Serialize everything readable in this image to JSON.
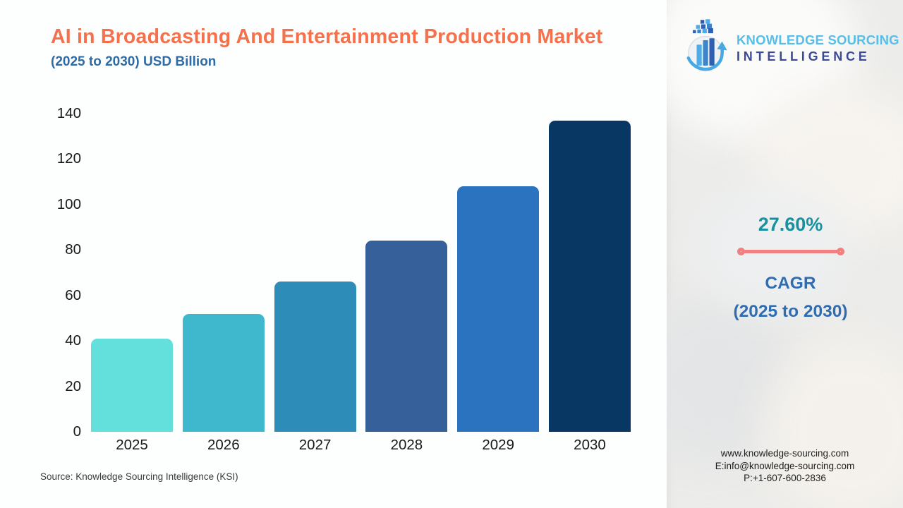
{
  "header": {
    "title": "AI in Broadcasting And Entertainment Production Market",
    "subtitle": "(2025 to 2030) USD Billion"
  },
  "logo": {
    "icon": "bar-chart-globe-arrow-icon",
    "line1": "KNOWLEDGE SOURCING",
    "line2": "INTELLIGENCE",
    "line1_color": "#56BEE8",
    "line2_color": "#3B4A96"
  },
  "chart_data": {
    "type": "bar",
    "title": "AI in Broadcasting And Entertainment Production Market (2025 to 2030) USD Billion",
    "categories": [
      "2025",
      "2026",
      "2027",
      "2028",
      "2029",
      "2030"
    ],
    "values": [
      41,
      52,
      66,
      84,
      108,
      137
    ],
    "bar_colors": [
      "#63E0DC",
      "#3FB8CE",
      "#2E8CB8",
      "#35609A",
      "#2B73BE",
      "#093763"
    ],
    "xlabel": "",
    "ylabel": "USD Billion",
    "ylim": [
      0,
      140
    ],
    "yticks": [
      0,
      20,
      40,
      60,
      80,
      100,
      120,
      140
    ],
    "grid": false,
    "legend": "none"
  },
  "cagr": {
    "value": "27.60%",
    "label1": "CAGR",
    "label2": "(2025 to 2030)",
    "value_color": "#17909F",
    "label_color": "#2F6CB0",
    "line_color": "#F28080"
  },
  "source": {
    "text": "Source: Knowledge Sourcing Intelligence (KSI)"
  },
  "contact": {
    "website": "www.knowledge-sourcing.com",
    "email": "E:info@knowledge-sourcing.com",
    "phone": "P:+1-607-600-2836"
  }
}
